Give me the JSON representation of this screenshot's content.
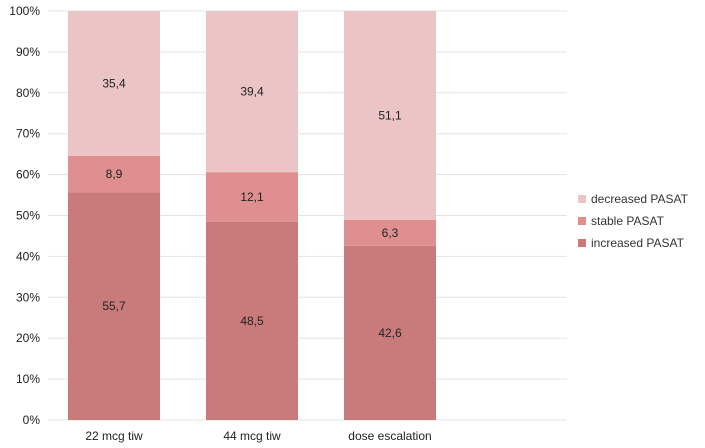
{
  "chart_data": {
    "type": "bar",
    "stacked": true,
    "percent_stacked": true,
    "categories": [
      "22 mcg tiw",
      "44 mcg tiw",
      "dose escalation"
    ],
    "series": [
      {
        "name": "increased PASAT",
        "values": [
          55.7,
          48.5,
          42.6
        ],
        "labels": [
          "55,7",
          "48,5",
          "42,6"
        ],
        "color": "#c97a7a"
      },
      {
        "name": "stable PASAT",
        "values": [
          8.9,
          12.1,
          6.3
        ],
        "labels": [
          "8,9",
          "12,1",
          "6,3"
        ],
        "color": "#df8f8f"
      },
      {
        "name": "decreased PASAT",
        "values": [
          35.4,
          39.4,
          51.1
        ],
        "labels": [
          "35,4",
          "39,4",
          "51,1"
        ],
        "color": "#ebc5c5"
      }
    ],
    "ylim": [
      0,
      100
    ],
    "yticks": [
      "0%",
      "10%",
      "20%",
      "30%",
      "40%",
      "50%",
      "60%",
      "70%",
      "80%",
      "90%",
      "100%"
    ],
    "grid": true,
    "legend_position": "right",
    "legend_order": [
      "decreased PASAT",
      "stable PASAT",
      "increased PASAT"
    ],
    "xlabel": "",
    "ylabel": "",
    "title": ""
  }
}
